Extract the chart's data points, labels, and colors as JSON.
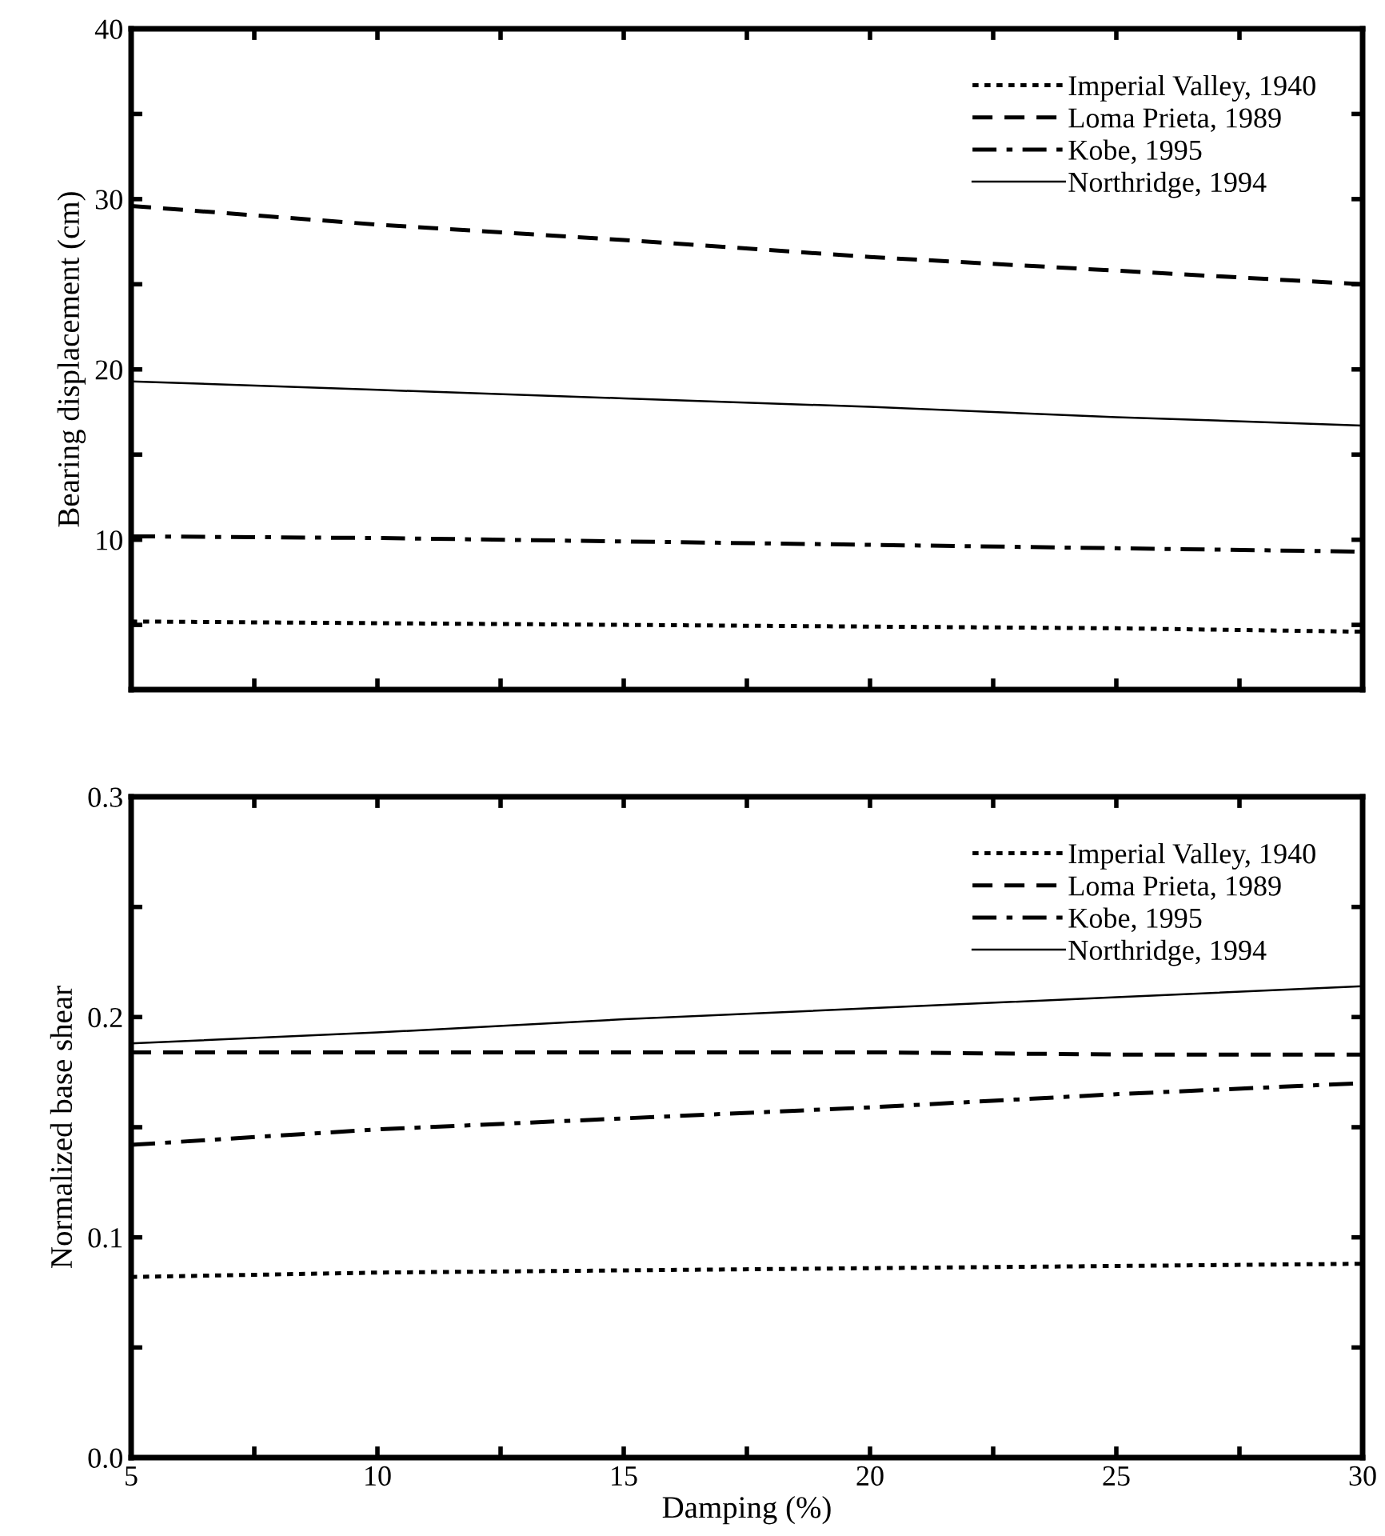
{
  "chart_data": [
    {
      "type": "line",
      "ylabel": "Bearing displacement (cm)",
      "x": [
        5,
        10,
        15,
        20,
        25,
        30
      ],
      "xlim": [
        5,
        30
      ],
      "xticks": [
        {
          "value": 5,
          "label": null
        },
        {
          "value": 7.5,
          "label": null
        },
        {
          "value": 10,
          "label": null
        },
        {
          "value": 12.5,
          "label": null
        },
        {
          "value": 15,
          "label": null
        },
        {
          "value": 17.5,
          "label": null
        },
        {
          "value": 20,
          "label": null
        },
        {
          "value": 22.5,
          "label": null
        },
        {
          "value": 25,
          "label": null
        },
        {
          "value": 27.5,
          "label": null
        },
        {
          "value": 30,
          "label": null
        }
      ],
      "ylim": [
        1.2,
        40
      ],
      "yticks": [
        {
          "value": 5,
          "label": null
        },
        10,
        {
          "value": 15,
          "label": null
        },
        20,
        {
          "value": 25,
          "label": null
        },
        30,
        {
          "value": 35,
          "label": null
        },
        40
      ],
      "tick_labels": "y",
      "legend": "top right",
      "grid": false,
      "marker": "none",
      "series": [
        {
          "name": "Imperial Valley, 1940",
          "color": "#000000",
          "line_style": "dotted",
          "values": [
            5.2,
            5.1,
            5.0,
            4.9,
            4.8,
            4.6
          ]
        },
        {
          "name": "Loma Prieta, 1989",
          "color": "#000000",
          "line_style": "dashed",
          "values": [
            29.6,
            28.5,
            27.6,
            26.6,
            25.8,
            25.0
          ]
        },
        {
          "name": "Kobe, 1995",
          "color": "#000000",
          "line_style": "dashdot",
          "values": [
            10.2,
            10.1,
            9.9,
            9.7,
            9.5,
            9.3
          ]
        },
        {
          "name": "Northridge, 1994",
          "color": "#000000",
          "line_style": "solid",
          "values": [
            19.3,
            18.8,
            18.3,
            17.8,
            17.2,
            16.7
          ]
        }
      ]
    },
    {
      "type": "line",
      "xlabel": "Damping (%)",
      "ylabel": "Normalized base shear",
      "x": [
        5,
        10,
        15,
        20,
        25,
        30
      ],
      "xlim": [
        5,
        30
      ],
      "xticks": [
        5,
        {
          "value": 7.5,
          "label": null
        },
        10,
        {
          "value": 12.5,
          "label": null
        },
        15,
        {
          "value": 17.5,
          "label": null
        },
        20,
        {
          "value": 22.5,
          "label": null
        },
        25,
        {
          "value": 27.5,
          "label": null
        },
        30
      ],
      "ylim": [
        0,
        0.3
      ],
      "yticks": [
        {
          "value": 0,
          "label": "0.0"
        },
        {
          "value": 0.05,
          "label": null
        },
        0.1,
        {
          "value": 0.15,
          "label": null
        },
        0.2,
        {
          "value": 0.25,
          "label": null
        },
        0.3
      ],
      "legend": "top right",
      "grid": false,
      "marker": "none",
      "series": [
        {
          "name": "Imperial Valley, 1940",
          "color": "#000000",
          "line_style": "dotted",
          "values": [
            0.082,
            0.084,
            0.085,
            0.086,
            0.087,
            0.088
          ]
        },
        {
          "name": "Loma Prieta, 1989",
          "color": "#000000",
          "line_style": "dashed",
          "values": [
            0.184,
            0.184,
            0.184,
            0.184,
            0.183,
            0.183
          ]
        },
        {
          "name": "Kobe, 1995",
          "color": "#000000",
          "line_style": "dashdot",
          "values": [
            0.142,
            0.149,
            0.154,
            0.159,
            0.165,
            0.17
          ]
        },
        {
          "name": "Northridge, 1994",
          "color": "#000000",
          "line_style": "solid",
          "values": [
            0.188,
            0.193,
            0.199,
            0.204,
            0.209,
            0.214
          ]
        }
      ]
    }
  ]
}
